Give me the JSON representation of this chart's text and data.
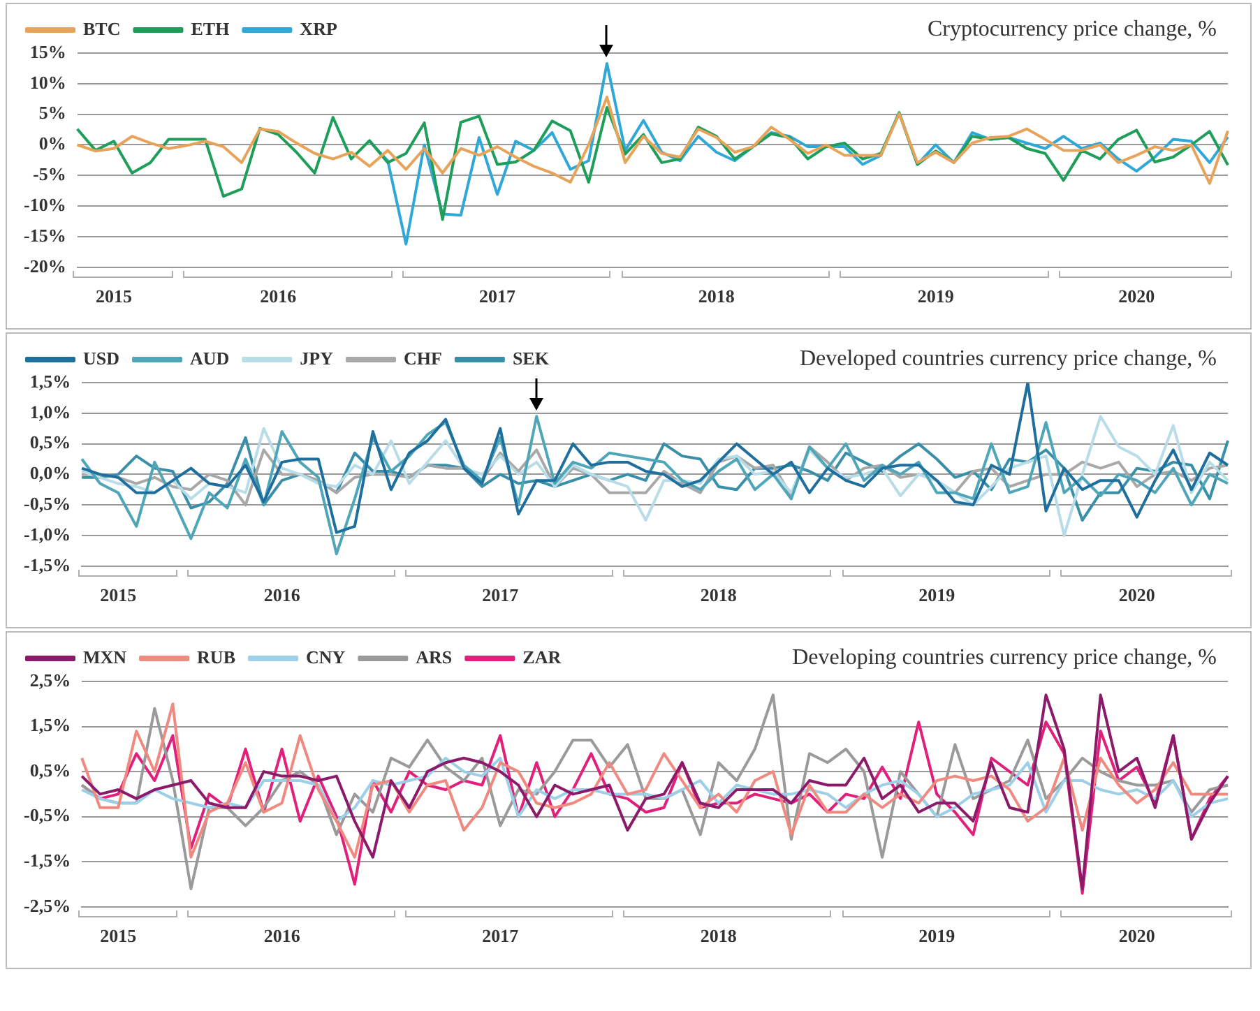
{
  "chart_data": [
    {
      "type": "line",
      "title": "Cryptocurrency price change, %",
      "categories": [
        null,
        null,
        "2015",
        null,
        null,
        null,
        null,
        null,
        null,
        null,
        null,
        "2016",
        null,
        null,
        null,
        null,
        null,
        null,
        null,
        null,
        null,
        null,
        null,
        "2017",
        null,
        null,
        null,
        null,
        null,
        null,
        null,
        null,
        null,
        null,
        null,
        "2018",
        null,
        null,
        null,
        null,
        null,
        null,
        null,
        null,
        null,
        null,
        null,
        "2019",
        null,
        null,
        null,
        null,
        null,
        null,
        null,
        null,
        null,
        null,
        "2020",
        null,
        null,
        null,
        null,
        null
      ],
      "series": [
        {
          "name": "BTC",
          "color": "#e8a35a",
          "values": [
            0,
            -1.0,
            -0.6,
            1.4,
            0.3,
            -0.6,
            -0.1,
            0.6,
            -0.3,
            -2.9,
            2.6,
            2.2,
            0.3,
            -1.4,
            -2.3,
            -1.2,
            -3.5,
            -0.9,
            -4.0,
            -0.6,
            -4.6,
            -0.6,
            -1.7,
            -0.3,
            -2.0,
            -3.5,
            -4.6,
            -6.1,
            0,
            7.8,
            -2.9,
            1.4,
            -1.4,
            -2.0,
            2.6,
            1.2,
            -1.2,
            -0.3,
            2.9,
            0.9,
            -1.4,
            0,
            -1.7,
            -1.7,
            -1.7,
            5.1,
            -2.9,
            -1.2,
            -2.9,
            0.3,
            1.2,
            1.4,
            2.6,
            0.9,
            -0.9,
            -0.9,
            0,
            -2.9,
            -1.7,
            -0.3,
            -0.9,
            0,
            -6.3,
            2.3
          ]
        },
        {
          "name": "ETH",
          "color": "#1f9e5a",
          "values": [
            2.6,
            -0.9,
            0.6,
            -4.6,
            -2.9,
            0.9,
            0.9,
            0.9,
            -8.4,
            -7.2,
            2.7,
            1.7,
            -1.2,
            -4.6,
            4.5,
            -2.3,
            0.7,
            -2.9,
            -1.4,
            3.6,
            -12.2,
            3.7,
            4.7,
            -3.2,
            -2.8,
            -0.9,
            3.9,
            2.3,
            -6.1,
            6.1,
            -1.5,
            1.7,
            -2.9,
            -2.3,
            2.9,
            1.4,
            -2.3,
            -0.3,
            1.8,
            1.2,
            -2.3,
            -0.3,
            0.3,
            -2.3,
            -1.4,
            5.2,
            -3.2,
            -1.0,
            -2.9,
            1.4,
            0.9,
            1.2,
            -0.6,
            -1.4,
            -5.8,
            -0.9,
            -2.3,
            0.9,
            2.4,
            -2.8,
            -2.0,
            0,
            2.2,
            -3.3
          ]
        },
        {
          "name": "XRP",
          "color": "#2fa8d8",
          "values": [
            null,
            null,
            null,
            null,
            null,
            null,
            null,
            null,
            null,
            null,
            null,
            null,
            null,
            null,
            null,
            null,
            0.6,
            -2.6,
            -16.2,
            0,
            -11.3,
            -11.5,
            1.2,
            -8.1,
            0.6,
            -0.9,
            2.0,
            -4.0,
            -2.6,
            13.3,
            -0.9,
            4.0,
            -1.2,
            -2.6,
            1.4,
            -1.2,
            -2.6,
            -0.3,
            2.0,
            1.4,
            -0.3,
            -0.3,
            -0.3,
            -3.2,
            -1.7,
            5.3,
            -3.2,
            0,
            -2.9,
            2.0,
            0.9,
            1.2,
            0.3,
            -0.6,
            1.4,
            -0.6,
            0.3,
            -2.3,
            -4.3,
            -2.0,
            0.9,
            0.6,
            -2.9,
            1.3
          ]
        }
      ],
      "ylim": [
        -20,
        15
      ],
      "yticks": [
        {
          "value": -20,
          "label": "-20%"
        },
        {
          "value": -15,
          "label": "-15%"
        },
        {
          "value": -10,
          "label": "-10%"
        },
        {
          "value": -5,
          "label": "-5%"
        },
        {
          "value": 0,
          "label": "0%"
        },
        {
          "value": 5,
          "label": "5%"
        },
        {
          "value": 10,
          "label": "10%"
        },
        {
          "value": 15,
          "label": "15%"
        }
      ],
      "grid": "y",
      "legend": "top left",
      "marker": "none"
    },
    {
      "type": "line",
      "title": "Developed countries currency price change, %",
      "categories": [
        null,
        null,
        "2015",
        null,
        null,
        null,
        null,
        null,
        null,
        null,
        null,
        "2016",
        null,
        null,
        null,
        null,
        null,
        null,
        null,
        null,
        null,
        null,
        null,
        "2017",
        null,
        null,
        null,
        null,
        null,
        null,
        null,
        null,
        null,
        null,
        null,
        "2018",
        null,
        null,
        null,
        null,
        null,
        null,
        null,
        null,
        null,
        null,
        null,
        "2019",
        null,
        null,
        null,
        null,
        null,
        null,
        null,
        null,
        null,
        null,
        "2020",
        null,
        null,
        null,
        null,
        null
      ],
      "series": [
        {
          "name": "USD",
          "color": "#1f6f9e",
          "values": [
            0.1,
            0,
            -0.05,
            -0.3,
            -0.3,
            -0.1,
            0.1,
            -0.15,
            -0.2,
            0.15,
            -0.45,
            0.2,
            0.25,
            0.25,
            -0.95,
            -0.85,
            0.7,
            -0.25,
            0.35,
            0.55,
            0.9,
            0.1,
            -0.15,
            0.75,
            -0.65,
            -0.1,
            -0.1,
            0.5,
            0.15,
            0.2,
            0.2,
            0.05,
            0,
            -0.2,
            -0.1,
            0.2,
            0.5,
            0.25,
            0,
            0.2,
            -0.3,
            0.1,
            -0.1,
            -0.2,
            0.1,
            0.15,
            0.15,
            -0.1,
            -0.45,
            -0.5,
            0.15,
            0,
            1.5,
            -0.6,
            0.1,
            -0.25,
            -0.1,
            -0.1,
            -0.7,
            -0.1,
            0.4,
            -0.25,
            0.35,
            0.15
          ]
        },
        {
          "name": "AUD",
          "color": "#4fa6b8",
          "values": [
            0.25,
            -0.15,
            -0.3,
            -0.85,
            0.2,
            -0.4,
            -1.05,
            -0.3,
            -0.55,
            0.25,
            -0.5,
            0.7,
            0.2,
            -0.05,
            -1.3,
            -0.4,
            0.6,
            0.05,
            0.3,
            0.65,
            0.85,
            0.15,
            -0.1,
            0.6,
            -0.5,
            0.95,
            -0.15,
            0.2,
            0.1,
            0.35,
            0.3,
            0.25,
            0.2,
            -0.1,
            -0.25,
            0.05,
            0.25,
            -0.25,
            0,
            -0.4,
            0.45,
            0.1,
            0.5,
            -0.1,
            0.15,
            0,
            0.2,
            -0.3,
            -0.3,
            -0.4,
            0.5,
            -0.3,
            -0.2,
            0.85,
            -0.3,
            -0.05,
            -0.35,
            0,
            -0.1,
            -0.3,
            0.1,
            -0.5,
            0,
            -0.15
          ]
        },
        {
          "name": "JPY",
          "color": "#b8dde8",
          "values": [
            0.05,
            -0.05,
            -0.15,
            -0.2,
            -0.3,
            -0.1,
            -0.4,
            -0.15,
            -0.2,
            -0.3,
            0.75,
            0.1,
            0,
            -0.15,
            -0.2,
            0.15,
            0,
            0.55,
            -0.15,
            0.2,
            0.55,
            0.1,
            0,
            0.3,
            0,
            0.2,
            -0.2,
            0.15,
            0,
            -0.1,
            -0.2,
            -0.75,
            -0.1,
            -0.1,
            -0.15,
            0.25,
            0.3,
            0,
            0.05,
            -0.3,
            0.4,
            0.1,
            -0.05,
            0,
            0.1,
            -0.35,
            0,
            -0.1,
            -0.3,
            -0.5,
            -0.2,
            0.1,
            0.2,
            0.3,
            -1.0,
            0,
            0.95,
            0.45,
            0.3,
            0,
            0.8,
            -0.3,
            0.2,
            -0.1
          ]
        },
        {
          "name": "CHF",
          "color": "#a8a8a8",
          "values": [
            0,
            0,
            -0.05,
            -0.15,
            -0.05,
            -0.2,
            -0.25,
            0,
            -0.1,
            -0.5,
            0.4,
            0,
            0,
            -0.1,
            -0.3,
            -0.05,
            0,
            0,
            -0.05,
            0.15,
            0.1,
            0.1,
            -0.1,
            0.35,
            0.05,
            0.4,
            -0.2,
            0.1,
            0,
            -0.3,
            -0.3,
            -0.3,
            0.05,
            -0.15,
            -0.3,
            0.2,
            0.3,
            0.1,
            0.15,
            -0.35,
            0.45,
            0.2,
            -0.1,
            0.1,
            0.15,
            -0.05,
            0,
            -0.1,
            -0.3,
            0.05,
            0.1,
            -0.2,
            -0.1,
            0,
            0,
            0.2,
            0.1,
            0.2,
            -0.2,
            0,
            0.05,
            -0.1,
            0.1,
            0.15
          ]
        },
        {
          "name": "SEK",
          "color": "#3a8fa8",
          "values": [
            -0.05,
            -0.05,
            0,
            0.3,
            0.1,
            0.05,
            -0.55,
            -0.45,
            -0.15,
            0.6,
            -0.5,
            -0.1,
            0,
            -0.1,
            -0.3,
            0.35,
            0.05,
            0.05,
            -0.05,
            0.15,
            0.15,
            0.1,
            -0.2,
            0,
            -0.15,
            -0.1,
            -0.2,
            -0.1,
            0,
            -0.1,
            0,
            -0.1,
            0.5,
            0.3,
            0.25,
            -0.2,
            -0.25,
            0.1,
            0.1,
            0.15,
            0.05,
            -0.1,
            0.35,
            0.2,
            0.05,
            0.3,
            0.5,
            0.25,
            -0.05,
            0.05,
            -0.25,
            0.25,
            0.2,
            0.4,
            0.1,
            -0.75,
            -0.3,
            -0.3,
            0.1,
            0.05,
            0.2,
            0.15,
            -0.4,
            0.55
          ]
        }
      ],
      "ylim": [
        -1.5,
        1.5
      ],
      "yticks": [
        {
          "value": -1.5,
          "label": "-1,5%"
        },
        {
          "value": -1,
          "label": "-1,0%"
        },
        {
          "value": -0.5,
          "label": "-0,5%"
        },
        {
          "value": 0,
          "label": "0,0%"
        },
        {
          "value": 0.5,
          "label": "0,5%"
        },
        {
          "value": 1,
          "label": "1,0%"
        },
        {
          "value": 1.5,
          "label": "1,5%"
        }
      ],
      "grid": "y",
      "legend": "top left",
      "marker": "none"
    },
    {
      "type": "line",
      "title": "Developing countries currency price change, %",
      "categories": [
        null,
        null,
        "2015",
        null,
        null,
        null,
        null,
        null,
        null,
        null,
        null,
        "2016",
        null,
        null,
        null,
        null,
        null,
        null,
        null,
        null,
        null,
        null,
        null,
        "2017",
        null,
        null,
        null,
        null,
        null,
        null,
        null,
        null,
        null,
        null,
        null,
        "2018",
        null,
        null,
        null,
        null,
        null,
        null,
        null,
        null,
        null,
        null,
        null,
        "2019",
        null,
        null,
        null,
        null,
        null,
        null,
        null,
        null,
        null,
        null,
        "2020",
        null,
        null,
        null,
        null,
        null
      ],
      "series": [
        {
          "name": "MXN",
          "color": "#8b1a6b",
          "values": [
            0.4,
            0,
            0.1,
            -0.1,
            0.1,
            0.2,
            0.3,
            -0.2,
            -0.3,
            -0.3,
            0.5,
            0.4,
            0.4,
            0.3,
            0.4,
            -0.6,
            -1.4,
            0.3,
            -0.3,
            0.5,
            0.7,
            0.8,
            0.7,
            0.5,
            0.2,
            -0.5,
            0.2,
            0,
            0.1,
            0.2,
            -0.8,
            -0.1,
            0,
            0.7,
            -0.2,
            -0.3,
            0.1,
            0.1,
            0.1,
            -0.2,
            0.3,
            0.2,
            0.2,
            0.8,
            -0.1,
            0.2,
            -0.4,
            -0.2,
            -0.2,
            -0.6,
            0.7,
            -0.3,
            -0.4,
            2.2,
            1.0,
            -2.1,
            2.2,
            0.5,
            0.8,
            -0.3,
            1.3,
            -1.0,
            -0.2,
            0.4
          ]
        },
        {
          "name": "RUB",
          "color": "#f08a80",
          "values": [
            0.8,
            -0.3,
            -0.3,
            1.4,
            0.5,
            2.0,
            -1.4,
            -0.4,
            -0.2,
            0.7,
            -0.4,
            -0.2,
            1.3,
            0.1,
            -0.6,
            -1.4,
            0.2,
            0.3,
            -0.4,
            0.2,
            0.3,
            -0.8,
            -0.3,
            0.7,
            0.5,
            -0.2,
            -0.3,
            -0.2,
            0,
            0.7,
            0,
            0.1,
            0.9,
            0.3,
            -0.3,
            0,
            -0.4,
            0.3,
            0.5,
            -0.9,
            0.2,
            -0.4,
            -0.4,
            0,
            -0.3,
            0,
            -0.2,
            0.3,
            0.4,
            0.3,
            0.4,
            0.1,
            -0.6,
            -0.3,
            0.8,
            -0.8,
            0.8,
            0.2,
            -0.2,
            0.1,
            0.7,
            0,
            0,
            0
          ]
        },
        {
          "name": "CNY",
          "color": "#9ccfe8",
          "values": [
            0.1,
            -0.1,
            -0.2,
            -0.2,
            0.1,
            -0.1,
            -0.2,
            -0.3,
            -0.2,
            -0.3,
            0.3,
            0.3,
            0.3,
            0.2,
            -0.6,
            -0.3,
            0.3,
            0.2,
            0.3,
            0.4,
            0.8,
            0.5,
            0.4,
            0.8,
            -0.5,
            0.1,
            -0.1,
            0.1,
            0.1,
            0,
            0,
            0,
            -0.1,
            0.1,
            0.3,
            -0.2,
            0.2,
            0.1,
            0,
            0,
            0.1,
            0,
            -0.3,
            0,
            0.2,
            0.3,
            0,
            -0.5,
            -0.3,
            0,
            0.1,
            0.2,
            0.7,
            -0.4,
            0.3,
            0.3,
            0.1,
            0,
            0.1,
            -0.1,
            0.3,
            -0.5,
            -0.2,
            -0.1
          ]
        },
        {
          "name": "ARS",
          "color": "#9a9a9a",
          "values": [
            0.2,
            -0.1,
            -0.2,
            -0.2,
            1.9,
            0.3,
            -2.1,
            -0.3,
            -0.3,
            -0.7,
            -0.3,
            0.3,
            0.5,
            0.2,
            -0.9,
            0,
            -0.4,
            0.8,
            0.6,
            1.2,
            0.6,
            0.3,
            0.8,
            -0.7,
            0.1,
            0,
            0.5,
            1.2,
            1.2,
            0.6,
            1.1,
            -0.1,
            -0.1,
            0.1,
            -0.9,
            0.7,
            0.3,
            1.0,
            2.2,
            -1.0,
            0.9,
            0.7,
            1.0,
            0.5,
            -1.4,
            0.5,
            0,
            -0.5,
            1.1,
            -0.1,
            0.1,
            0.3,
            1.2,
            -0.1,
            0.3,
            0.8,
            0.5,
            0.3,
            0.2,
            0.2,
            0.3,
            -0.4,
            0.1,
            0.2
          ]
        },
        {
          "name": "ZAR",
          "color": "#e0207a",
          "values": [
            0.2,
            -0.1,
            0,
            0.9,
            0.3,
            1.3,
            -1.2,
            0,
            -0.3,
            1.0,
            -0.4,
            1.0,
            -0.6,
            0.4,
            -0.5,
            -2.0,
            0.3,
            -0.4,
            0.5,
            0.2,
            0.1,
            0.3,
            0.2,
            1.3,
            -0.5,
            0.7,
            -0.5,
            0.1,
            0.9,
            0,
            -0.1,
            -0.4,
            -0.3,
            0.7,
            -0.3,
            -0.2,
            -0.2,
            0,
            -0.1,
            -0.2,
            0,
            -0.4,
            0,
            -0.1,
            0.6,
            -0.1,
            1.6,
            0,
            -0.4,
            -0.9,
            0.8,
            0.5,
            0.2,
            1.6,
            0.9,
            -2.2,
            1.4,
            0.3,
            0.6,
            -0.2,
            1.3,
            -1.0,
            -0.1,
            0.4
          ]
        }
      ],
      "ylim": [
        -2.5,
        2.5
      ],
      "yticks": [
        {
          "value": -2.5,
          "label": "-2,5%"
        },
        {
          "value": -1.5,
          "label": "-1,5%"
        },
        {
          "value": -0.5,
          "label": "-0,5%"
        },
        {
          "value": 0.5,
          "label": "0,5%"
        },
        {
          "value": 1.5,
          "label": "1,5%"
        },
        {
          "value": 2.5,
          "label": "2,5%"
        }
      ],
      "grid": "y",
      "legend": "top left",
      "marker": "none"
    }
  ]
}
